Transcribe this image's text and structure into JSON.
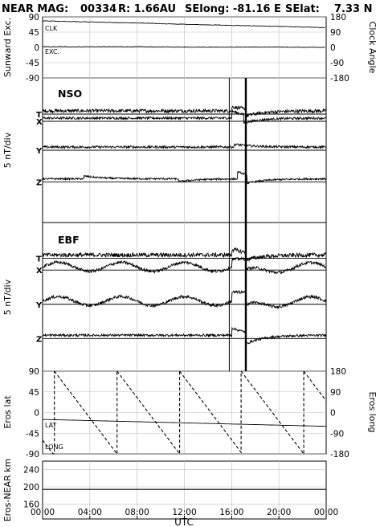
{
  "header": {
    "mission": "NEAR MAG:",
    "doy": "00334",
    "range": "R: 1.66AU",
    "selong": "SElong:  -81.16 E",
    "selat": "SElat:    7.33 N"
  },
  "x_axis": {
    "label": "UTC",
    "ticks": [
      "00:00",
      "04:00",
      "08:00",
      "12:00",
      "16:00",
      "20:00",
      "00:00"
    ],
    "tick_hours": [
      0,
      4,
      8,
      12,
      16,
      20,
      24
    ],
    "range_hours": [
      0,
      24
    ]
  },
  "chart_data": [
    {
      "type": "line",
      "panel": "angles",
      "ylabel_left": "Sunward Exc.",
      "ylabel_right": "Clock Angle",
      "yticks_left": [
        "90",
        "45",
        "0",
        "-45",
        "-90"
      ],
      "yticks_left_values": [
        90,
        45,
        0,
        -45,
        -90
      ],
      "yticks_right": [
        "180",
        "90",
        "0",
        "-90",
        "-180"
      ],
      "ylim": [
        -90,
        90
      ],
      "series": [
        {
          "name": "CLK",
          "x": [
            0,
            4,
            8,
            12,
            16,
            20,
            24
          ],
          "y": [
            78,
            75,
            72,
            68,
            65,
            62,
            58
          ]
        },
        {
          "name": "EXC.",
          "x": [
            0,
            4,
            8,
            12,
            16,
            20,
            24
          ],
          "y": [
            2,
            2,
            2,
            1,
            1,
            1,
            0
          ]
        }
      ],
      "grid": true
    },
    {
      "type": "line",
      "panel": "NSO",
      "title": "NSO",
      "ylabel": "5 nT/div",
      "series": [
        {
          "name": "T",
          "baseline": 0.25,
          "noise": 0.012,
          "events": [
            [
              16.0,
              0.03
            ],
            [
              17.2,
              -0.05
            ]
          ]
        },
        {
          "name": "X",
          "baseline": 0.3,
          "noise": 0.008,
          "events": [
            [
              16.0,
              0.05
            ],
            [
              17.0,
              -0.06
            ]
          ]
        },
        {
          "name": "Y",
          "baseline": 0.5,
          "noise": 0.008,
          "events": [
            [
              16.2,
              0.02
            ]
          ]
        },
        {
          "name": "Z",
          "baseline": 0.72,
          "noise": 0.006,
          "events": [
            [
              3.5,
              0.02
            ],
            [
              11.5,
              -0.02
            ],
            [
              16.5,
              0.05
            ],
            [
              17.3,
              -0.06
            ]
          ]
        }
      ],
      "markers_hours": [
        15.8,
        17.2
      ],
      "grid": true
    },
    {
      "type": "line",
      "panel": "EBF",
      "title": "EBF",
      "ylabel": "5 nT/div",
      "series": [
        {
          "name": "T",
          "baseline": 0.24,
          "noise": 0.014,
          "events": [
            [
              16.0,
              0.04
            ],
            [
              17.2,
              -0.05
            ]
          ]
        },
        {
          "name": "X",
          "baseline": 0.32,
          "noise": 0.01,
          "wave": 0.03,
          "events": [
            [
              16.0,
              0.05
            ],
            [
              17.2,
              -0.07
            ]
          ]
        },
        {
          "name": "Y",
          "baseline": 0.55,
          "noise": 0.01,
          "wave": 0.03,
          "events": [
            [
              16.0,
              0.06
            ],
            [
              17.2,
              -0.08
            ]
          ]
        },
        {
          "name": "Z",
          "baseline": 0.78,
          "noise": 0.008,
          "events": [
            [
              16.0,
              0.05
            ],
            [
              17.2,
              -0.08
            ]
          ]
        }
      ],
      "markers_hours": [
        15.8,
        17.2
      ],
      "grid": true
    },
    {
      "type": "line",
      "panel": "eros",
      "ylabel_left": "Eros lat",
      "ylabel_right": "Eros long",
      "yticks_left": [
        "90",
        "45",
        "0",
        "-45",
        "-90"
      ],
      "yticks_left_values": [
        90,
        45,
        0,
        -45,
        -90
      ],
      "yticks_right": [
        "180",
        "90",
        "0",
        "-90",
        "-180"
      ],
      "ylim": [
        -90,
        90
      ],
      "series": [
        {
          "name": "LAT",
          "x": [
            0,
            24
          ],
          "y": [
            -15,
            -30
          ]
        },
        {
          "name": "LONG",
          "wraps_hours": [
            1.0,
            6.3,
            11.6,
            16.8,
            22.1
          ],
          "lon_start": -120,
          "deg_per_hour": -67.9
        }
      ],
      "grid": true
    },
    {
      "type": "line",
      "panel": "range",
      "ylabel": "Eros-NEAR km",
      "yticks": [
        "240",
        "200",
        "160"
      ],
      "yticks_values": [
        240,
        200,
        160
      ],
      "ylim": [
        125,
        260
      ],
      "series": [
        {
          "name": "range",
          "x": [
            0,
            24
          ],
          "y": [
            194,
            194
          ]
        }
      ],
      "grid": true
    }
  ]
}
